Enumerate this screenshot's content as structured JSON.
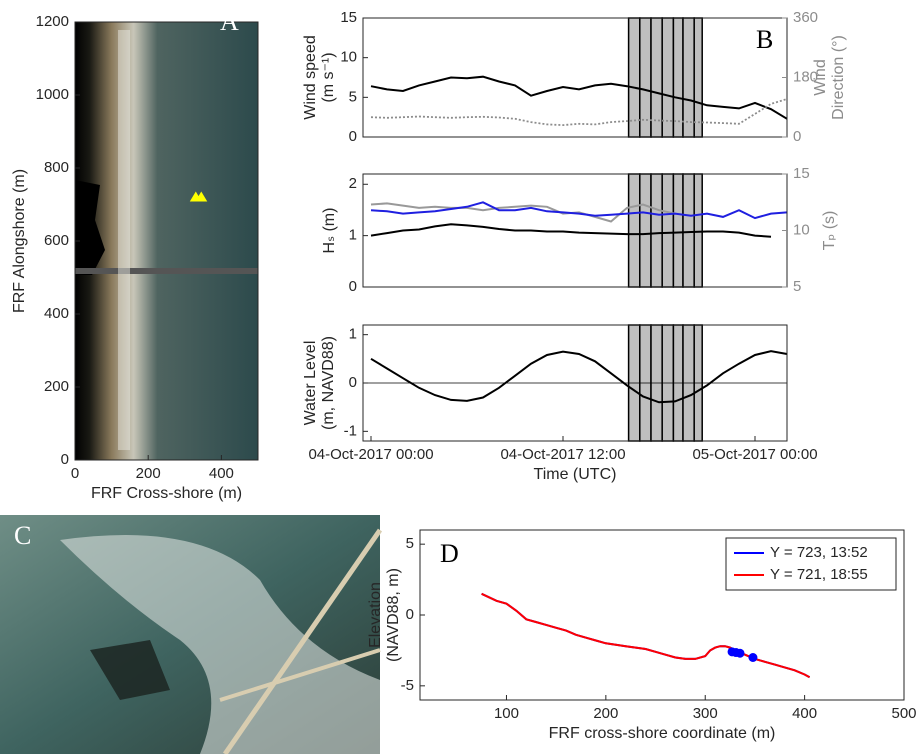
{
  "chart_data": [
    {
      "type": "scatter",
      "label": "A",
      "xlabel": "FRF Cross-shore (m)",
      "ylabel": "FRF Alongshore (m)",
      "xlim": [
        0,
        500
      ],
      "xticks": [
        0,
        200,
        400
      ],
      "ylim": [
        0,
        1200
      ],
      "yticks": [
        0,
        200,
        400,
        600,
        800,
        1000,
        1200
      ],
      "series": [
        {
          "color": "#ffff00",
          "marker": "triangle",
          "x": [
            330,
            345
          ],
          "values": [
            722,
            722
          ]
        }
      ]
    },
    {
      "type": "line",
      "label": "B",
      "ylabel": [
        "Wind speed",
        "(m s⁻¹)"
      ],
      "y2label": [
        "Wind",
        "Direction (°)"
      ],
      "y2color": "#8c8c8c",
      "xlim": [
        -0.5,
        26
      ],
      "ylim": [
        0,
        15
      ],
      "yticks": [
        0,
        5,
        10,
        15
      ],
      "y2lim": [
        0,
        360
      ],
      "y2ticks": [
        0,
        180,
        360
      ],
      "shade_edges": [
        16.1,
        16.8,
        17.5,
        18.2,
        18.9,
        19.5,
        20.2,
        20.7
      ],
      "x": [
        0,
        1,
        2,
        3,
        4,
        5,
        6,
        7,
        8,
        9,
        10,
        11,
        12,
        13,
        14,
        15,
        16,
        17,
        18,
        19,
        20,
        21,
        22,
        23,
        24,
        25,
        26
      ],
      "series": [
        {
          "color": "#000000",
          "values": [
            6.4,
            6.0,
            5.8,
            6.5,
            7.0,
            7.5,
            7.4,
            7.6,
            7.0,
            6.5,
            5.2,
            5.8,
            6.3,
            6.0,
            6.5,
            6.7,
            6.4,
            6.0,
            5.5,
            5.0,
            4.6,
            4.0,
            3.8,
            3.6,
            4.3,
            3.5,
            2.3
          ]
        },
        {
          "color": "#8c8c8c",
          "style": "dotted",
          "axis": "y2",
          "values": [
            60,
            58,
            60,
            62,
            60,
            58,
            60,
            61,
            59,
            55,
            45,
            38,
            36,
            40,
            38,
            45,
            48,
            52,
            50,
            48,
            45,
            44,
            42,
            40,
            70,
            100,
            115
          ]
        }
      ]
    },
    {
      "type": "line",
      "ylabel": "Hₛ (m)",
      "y2label": "Tₚ (s)",
      "y2color": "#8c8c8c",
      "xlim": [
        -0.5,
        26
      ],
      "ylim": [
        0,
        2.2
      ],
      "yticks": [
        0,
        1,
        2
      ],
      "y2lim": [
        5,
        15
      ],
      "y2ticks": [
        5,
        10,
        15
      ],
      "shade_edges": [
        16.1,
        16.8,
        17.5,
        18.2,
        18.9,
        19.5,
        20.2,
        20.7
      ],
      "x": [
        0,
        1,
        2,
        3,
        4,
        5,
        6,
        7,
        8,
        9,
        10,
        11,
        12,
        13,
        14,
        15,
        16,
        17,
        18,
        19,
        20,
        21,
        22,
        23,
        24,
        25,
        26
      ],
      "series": [
        {
          "color": "#000000",
          "values": [
            1.0,
            1.05,
            1.1,
            1.12,
            1.18,
            1.22,
            1.2,
            1.17,
            1.13,
            1.1,
            1.1,
            1.08,
            1.08,
            1.06,
            1.05,
            1.04,
            1.03,
            1.03,
            1.05,
            1.06,
            1.07,
            1.08,
            1.08,
            1.06,
            1.0,
            0.98,
            null
          ]
        },
        {
          "color": "#999999",
          "axis": "y2",
          "values": [
            12.3,
            12.4,
            12.2,
            12.0,
            12.1,
            12.0,
            12.0,
            11.8,
            12.0,
            12.1,
            12.2,
            12.1,
            11.5,
            11.6,
            11.2,
            10.8,
            12.0,
            12.3,
            11.8,
            11.5,
            null,
            null,
            null,
            null,
            null,
            null,
            null
          ]
        },
        {
          "color": "#1f1fe0",
          "axis": "y2",
          "values": [
            11.8,
            11.7,
            11.5,
            11.6,
            11.7,
            11.9,
            12.1,
            12.5,
            11.8,
            11.8,
            12.0,
            11.7,
            11.6,
            11.5,
            11.3,
            11.4,
            11.5,
            11.6,
            11.4,
            11.5,
            11.3,
            11.5,
            11.2,
            11.8,
            11.1,
            11.5,
            11.6
          ]
        }
      ]
    },
    {
      "type": "line",
      "ylabel": [
        "Water Level",
        "(m, NAVD88)"
      ],
      "xlabel": "Time (UTC)",
      "xlim": [
        -0.5,
        26
      ],
      "xticks": [
        {
          "value": 0,
          "label": "04-Oct-2017 00:00"
        },
        {
          "value": 12,
          "label": "04-Oct-2017 12:00"
        },
        {
          "value": 24,
          "label": "05-Oct-2017 00:00"
        }
      ],
      "ylim": [
        -1.2,
        1.2
      ],
      "yticks": [
        -1,
        0,
        1
      ],
      "hline": 0,
      "shade_edges": [
        16.1,
        16.8,
        17.5,
        18.2,
        18.9,
        19.5,
        20.2,
        20.7
      ],
      "x": [
        0,
        1,
        2,
        3,
        4,
        5,
        6,
        7,
        8,
        9,
        10,
        11,
        12,
        13,
        14,
        15,
        16,
        17,
        18,
        19,
        20,
        21,
        22,
        23,
        24,
        25,
        26
      ],
      "series": [
        {
          "color": "#000000",
          "values": [
            0.5,
            0.3,
            0.1,
            -0.1,
            -0.25,
            -0.35,
            -0.37,
            -0.3,
            -0.1,
            0.15,
            0.4,
            0.58,
            0.65,
            0.6,
            0.45,
            0.2,
            -0.05,
            -0.28,
            -0.4,
            -0.38,
            -0.25,
            -0.05,
            0.2,
            0.4,
            0.58,
            0.66,
            0.6
          ]
        }
      ]
    },
    {
      "type": "line",
      "label": "D",
      "ylabel": [
        "Elevation",
        "(NAVD88, m)"
      ],
      "xlabel": "FRF cross-shore coordinate (m)",
      "xlim": [
        13,
        500
      ],
      "xticks": [
        100,
        200,
        300,
        400,
        500
      ],
      "ylim": [
        -6,
        6
      ],
      "yticks": [
        -5,
        0,
        5
      ],
      "legend": "upper right",
      "series": [
        {
          "name": "Y = 723, 13:52",
          "color": "#0000ff",
          "x": [
            75,
            90,
            100,
            110,
            120,
            130,
            140,
            150,
            160,
            170,
            180,
            190,
            200,
            210,
            220,
            230,
            240,
            250,
            260,
            270,
            280,
            290,
            300,
            305,
            310,
            315,
            320,
            325,
            330,
            340,
            350,
            360,
            370,
            380,
            390,
            400,
            405
          ],
          "values": [
            1.5,
            1.0,
            0.8,
            0.3,
            -0.3,
            -0.5,
            -0.7,
            -0.9,
            -1.1,
            -1.4,
            -1.6,
            -1.8,
            -2.0,
            -2.1,
            -2.2,
            -2.3,
            -2.4,
            -2.6,
            -2.8,
            -3.0,
            -3.1,
            -3.1,
            -2.9,
            -2.5,
            -2.3,
            -2.2,
            -2.2,
            -2.3,
            -2.5,
            -2.8,
            -3.1,
            -3.3,
            -3.5,
            -3.7,
            -3.9,
            -4.2,
            -4.4
          ]
        },
        {
          "name": "Y = 721, 18:55",
          "color": "#ff0000",
          "x": [
            75,
            90,
            100,
            110,
            120,
            130,
            140,
            150,
            160,
            170,
            180,
            190,
            200,
            210,
            220,
            230,
            240,
            250,
            260,
            270,
            280,
            290,
            300,
            305,
            310,
            315,
            320,
            325,
            330,
            340,
            350,
            360,
            370,
            380,
            390,
            400,
            405
          ],
          "values": [
            1.5,
            1.0,
            0.8,
            0.3,
            -0.3,
            -0.5,
            -0.7,
            -0.9,
            -1.1,
            -1.4,
            -1.6,
            -1.8,
            -2.0,
            -2.1,
            -2.2,
            -2.3,
            -2.4,
            -2.6,
            -2.8,
            -3.0,
            -3.1,
            -3.1,
            -2.9,
            -2.5,
            -2.3,
            -2.2,
            -2.2,
            -2.3,
            -2.5,
            -2.8,
            -3.1,
            -3.3,
            -3.5,
            -3.7,
            -3.9,
            -4.2,
            -4.4
          ]
        },
        {
          "color": "#0000ff",
          "marker": "circle",
          "x": [
            327,
            331,
            335,
            348
          ],
          "values": [
            -2.6,
            -2.65,
            -2.7,
            -3.0
          ]
        }
      ]
    }
  ],
  "panel_c": {
    "label": "C"
  }
}
